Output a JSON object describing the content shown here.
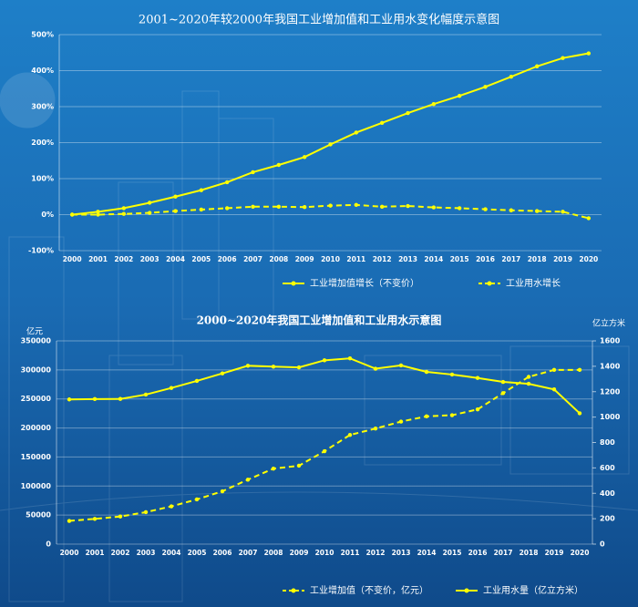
{
  "chart_data": [
    {
      "type": "line",
      "title": "2001~2020年较2000年我国工业增加值和工业用水变化幅度示意图",
      "categories": [
        "2000",
        "2001",
        "2002",
        "2003",
        "2004",
        "2005",
        "2006",
        "2007",
        "2008",
        "2009",
        "2010",
        "2011",
        "2012",
        "2013",
        "2014",
        "2015",
        "2016",
        "2017",
        "2018",
        "2019",
        "2020"
      ],
      "ylim": [
        -100,
        500
      ],
      "yticks": [
        {
          "value": -100,
          "label": "-100%"
        },
        {
          "value": 0,
          "label": "0%"
        },
        {
          "value": 100,
          "label": "100%"
        },
        {
          "value": 200,
          "label": "200%"
        },
        {
          "value": 300,
          "label": "300%"
        },
        {
          "value": 400,
          "label": "400%"
        },
        {
          "value": 500,
          "label": "500%"
        }
      ],
      "grid": true,
      "legend": "bottom",
      "series": [
        {
          "name": "工业增加值增长（不变价）",
          "color": "#ffff00",
          "dash": false,
          "values": [
            0,
            8,
            18,
            33,
            50,
            68,
            90,
            118,
            138,
            160,
            195,
            228,
            255,
            282,
            307,
            330,
            355,
            383,
            412,
            435,
            448
          ]
        },
        {
          "name": "工业用水增长",
          "color": "#ffff00",
          "dash": true,
          "values": [
            0,
            0,
            2,
            5,
            10,
            14,
            18,
            22,
            22,
            21,
            25,
            27,
            22,
            24,
            20,
            18,
            15,
            12,
            10,
            8,
            -10
          ]
        }
      ]
    },
    {
      "type": "line",
      "title": "2000~2020年我国工业增加值和工业用水示意图",
      "categories": [
        "2000",
        "2001",
        "2002",
        "2003",
        "2004",
        "2005",
        "2006",
        "2007",
        "2008",
        "2009",
        "2010",
        "2011",
        "2012",
        "2013",
        "2014",
        "2015",
        "2016",
        "2017",
        "2018",
        "2019",
        "2020"
      ],
      "y_label": "亿元",
      "y2_label": "亿立方米",
      "ylim": [
        0,
        350000
      ],
      "yticks": [
        0,
        50000,
        100000,
        150000,
        200000,
        250000,
        300000,
        350000
      ],
      "y2lim": [
        0,
        1600
      ],
      "y2ticks": [
        0,
        200,
        400,
        600,
        800,
        1000,
        1200,
        1400,
        1600
      ],
      "grid": true,
      "legend": "bottom",
      "series": [
        {
          "name": "工业增加值（不变价，亿元）",
          "color": "#ffff00",
          "dash": true,
          "values": [
            40000,
            43500,
            47500,
            55000,
            65000,
            77000,
            91000,
            111000,
            130000,
            135000,
            160000,
            188000,
            199000,
            211000,
            220000,
            222000,
            232000,
            260000,
            288000,
            300000,
            300000
          ]
        },
        {
          "name": "工业用水量（亿立方米）",
          "color": "#ffff00",
          "dash": false,
          "axis": "y2",
          "values": [
            1139,
            1142,
            1143,
            1177,
            1229,
            1285,
            1344,
            1404,
            1397,
            1391,
            1447,
            1462,
            1381,
            1407,
            1356,
            1335,
            1308,
            1277,
            1262,
            1218,
            1030
          ]
        }
      ]
    }
  ]
}
